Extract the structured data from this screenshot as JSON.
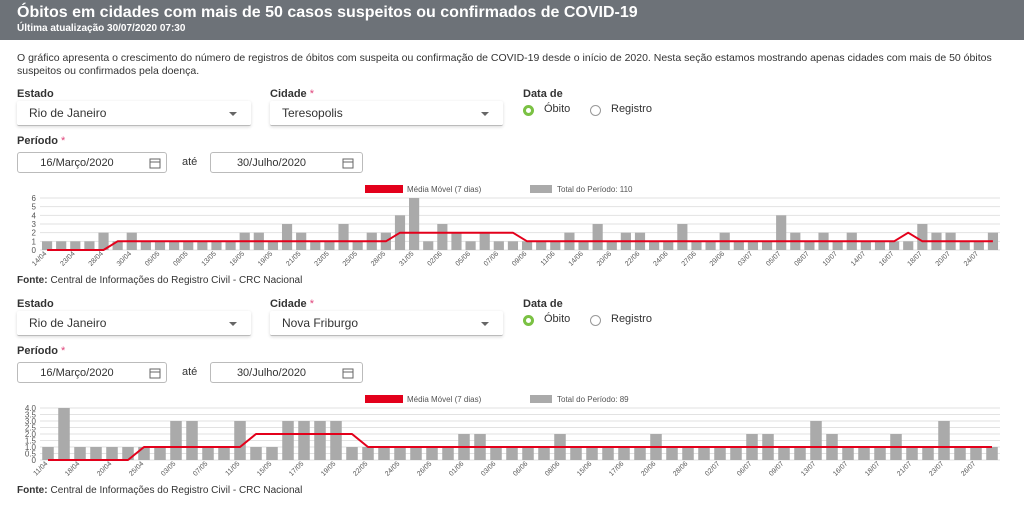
{
  "header": {
    "title": "Óbitos em cidades com mais de 50 casos suspeitos ou confirmados de COVID-19",
    "subtitle": "Última atualização 30/07/2020 07:30"
  },
  "description": "O gráfico apresenta o crescimento do número de registros de óbitos com suspeita ou confirmação de COVID-19 desde o início de 2020. Nesta seção estamos mostrando apenas cidades com mais de 50 óbitos suspeitos ou confirmados pela doença.",
  "panels": [
    {
      "estado_label": "Estado",
      "estado": "Rio de Janeiro",
      "cidade_label": "Cidade",
      "required": "*",
      "cidade": "Teresopolis",
      "data_label": "Data de",
      "options": [
        "Óbito",
        "Registro"
      ],
      "periodo_label": "Período",
      "start": "16/Março/2020",
      "ate": "até",
      "end": "30/Julho/2020",
      "source_label": "Fonte:",
      "source": "Central de Informações do Registro Civil - CRC Nacional"
    },
    {
      "estado_label": "Estado",
      "estado": "Rio de Janeiro",
      "cidade_label": "Cidade",
      "required": "*",
      "cidade": "Nova Friburgo",
      "data_label": "Data de",
      "options": [
        "Óbito",
        "Registro"
      ],
      "periodo_label": "Período",
      "start": "16/Março/2020",
      "ate": "até",
      "end": "30/Julho/2020",
      "source_label": "Fonte:",
      "source": "Central de Informações do Registro Civil - CRC Nacional"
    }
  ],
  "chart_data": [
    {
      "type": "bar",
      "ylim": [
        0,
        6
      ],
      "yticks": [
        0,
        1,
        2,
        3,
        4,
        5,
        6
      ],
      "grid": true,
      "categories": [
        "14/04",
        null,
        "23/04",
        null,
        "28/04",
        null,
        "30/04",
        null,
        "05/05",
        null,
        "09/05",
        null,
        "13/05",
        null,
        "16/05",
        null,
        "19/05",
        null,
        "21/05",
        null,
        "23/05",
        null,
        "25/05",
        null,
        "28/05",
        null,
        "31/05",
        null,
        "02/06",
        null,
        "05/06",
        null,
        "07/06",
        null,
        "09/06",
        null,
        "11/06",
        null,
        "14/06",
        null,
        "20/06",
        null,
        "22/06",
        null,
        "24/06",
        null,
        "27/06",
        null,
        "29/06",
        null,
        "03/07",
        null,
        "05/07",
        null,
        "08/07",
        null,
        "10/07",
        null,
        "14/07",
        null,
        "16/07",
        null,
        "18/07",
        null,
        "20/07",
        null,
        "24/07",
        null
      ],
      "series": [
        {
          "name": "Média Móvel (7 dias)",
          "type": "line",
          "color": "#e3001b",
          "values": [
            0,
            0,
            0,
            0,
            0,
            1,
            1,
            1,
            1,
            1,
            1,
            1,
            1,
            1,
            1,
            1,
            1,
            1,
            1,
            1,
            1,
            1,
            1,
            1,
            1,
            2,
            2,
            2,
            2,
            2,
            2,
            2,
            2,
            2,
            1,
            1,
            1,
            1,
            1,
            1,
            1,
            1,
            1,
            1,
            1,
            1,
            1,
            1,
            1,
            1,
            1,
            1,
            1,
            1,
            1,
            1,
            1,
            1,
            1,
            1,
            1,
            2,
            1,
            1,
            1,
            1,
            1,
            1
          ]
        },
        {
          "name": "Total do Período: 110",
          "type": "bar",
          "color": "#aaaaaa",
          "values": [
            1,
            1,
            1,
            1,
            2,
            1,
            2,
            1,
            1,
            1,
            1,
            1,
            1,
            1,
            2,
            2,
            1,
            3,
            2,
            1,
            1,
            3,
            1,
            2,
            2,
            4,
            6,
            1,
            3,
            2,
            1,
            2,
            1,
            1,
            1,
            1,
            1,
            2,
            1,
            3,
            1,
            2,
            2,
            1,
            1,
            3,
            1,
            1,
            2,
            1,
            1,
            1,
            4,
            2,
            1,
            2,
            1,
            2,
            1,
            1,
            1,
            1,
            3,
            2,
            2,
            1,
            1,
            2
          ]
        }
      ]
    },
    {
      "type": "bar",
      "ylim": [
        0,
        4
      ],
      "yticks": [
        0,
        0.5,
        {
          "value": 1,
          "label": "1.0"
        },
        1.5,
        {
          "value": 2,
          "label": "2.0"
        },
        2.5,
        {
          "value": 3,
          "label": "3.0"
        },
        3.5,
        {
          "value": 4,
          "label": "4.0"
        }
      ],
      "grid": true,
      "categories": [
        "11/04",
        null,
        "18/04",
        null,
        "20/04",
        null,
        "25/04",
        null,
        "03/05",
        null,
        "07/05",
        null,
        "11/05",
        null,
        "15/05",
        null,
        "17/05",
        null,
        "19/05",
        null,
        "22/05",
        null,
        "24/05",
        null,
        "26/05",
        null,
        "01/06",
        null,
        "03/06",
        null,
        "06/06",
        null,
        "08/06",
        null,
        "15/06",
        null,
        "17/06",
        null,
        "20/06",
        null,
        "28/06",
        null,
        "02/07",
        null,
        "06/07",
        null,
        "09/07",
        null,
        "13/07",
        null,
        "16/07",
        null,
        "18/07",
        null,
        "21/07",
        null,
        "23/07",
        null,
        "26/07",
        null
      ],
      "series": [
        {
          "name": "Média Móvel (7 dias)",
          "type": "line",
          "color": "#e3001b",
          "values": [
            0,
            0,
            0,
            0,
            0,
            0,
            1,
            1,
            1,
            1,
            1,
            1,
            1,
            2,
            2,
            2,
            2,
            2,
            2,
            2,
            1,
            1,
            1,
            1,
            1,
            1,
            1,
            1,
            1,
            1,
            1,
            1,
            1,
            1,
            1,
            1,
            1,
            1,
            1,
            1,
            1,
            1,
            1,
            1,
            1,
            1,
            1,
            1,
            1,
            1,
            1,
            1,
            1,
            1,
            1,
            1,
            1,
            1,
            1,
            1
          ]
        },
        {
          "name": "Total do Período: 89",
          "type": "bar",
          "color": "#aaaaaa",
          "values": [
            1,
            4,
            1,
            1,
            1,
            1,
            1,
            1,
            3,
            3,
            1,
            1,
            3,
            1,
            1,
            3,
            3,
            3,
            3,
            1,
            1,
            1,
            1,
            1,
            1,
            1,
            2,
            2,
            1,
            1,
            1,
            1,
            2,
            1,
            1,
            1,
            1,
            1,
            2,
            1,
            1,
            1,
            1,
            1,
            2,
            2,
            1,
            1,
            3,
            2,
            1,
            1,
            1,
            2,
            1,
            1,
            3,
            1,
            1,
            1
          ]
        }
      ]
    }
  ]
}
